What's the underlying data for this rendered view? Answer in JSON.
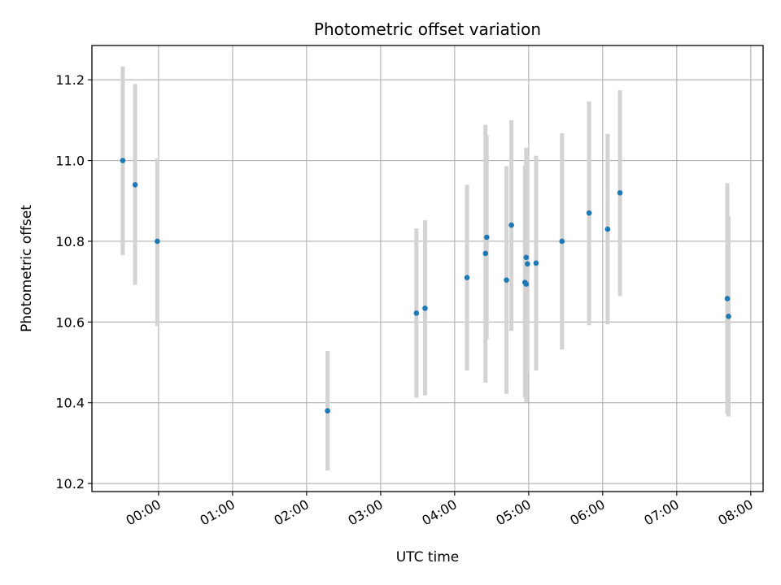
{
  "chart_data": {
    "type": "scatter",
    "title": "Photometric offset variation",
    "xlabel": "UTC time",
    "ylabel": "Photometric offset",
    "x_ticks": [
      "00:00",
      "01:00",
      "02:00",
      "03:00",
      "04:00",
      "05:00",
      "06:00",
      "07:00",
      "08:00"
    ],
    "y_ticks": [
      "10.2",
      "10.4",
      "10.6",
      "10.8",
      "11.0",
      "11.2"
    ],
    "xlim": [
      "-00:54",
      "08:10"
    ],
    "ylim": [
      10.18,
      11.285
    ],
    "grid": true,
    "errorbar_color": "#d3d3d3",
    "marker_color": "#1f77b4",
    "points": [
      {
        "x": "-00:29",
        "y": 11.0,
        "lo": 10.766,
        "hi": 11.233
      },
      {
        "x": "-00:19",
        "y": 10.94,
        "lo": 10.692,
        "hi": 11.19
      },
      {
        "x": "-00:01",
        "y": 10.8,
        "lo": 10.59,
        "hi": 11.005
      },
      {
        "x": "02:17",
        "y": 10.38,
        "lo": 10.232,
        "hi": 10.528
      },
      {
        "x": "03:29",
        "y": 10.622,
        "lo": 10.412,
        "hi": 10.832
      },
      {
        "x": "03:36",
        "y": 10.634,
        "lo": 10.418,
        "hi": 10.852
      },
      {
        "x": "04:10",
        "y": 10.71,
        "lo": 10.48,
        "hi": 10.94
      },
      {
        "x": "04:25",
        "y": 10.77,
        "lo": 10.45,
        "hi": 11.088
      },
      {
        "x": "04:26",
        "y": 10.81,
        "lo": 10.558,
        "hi": 11.062
      },
      {
        "x": "04:42",
        "y": 10.704,
        "lo": 10.422,
        "hi": 10.986
      },
      {
        "x": "04:46",
        "y": 10.84,
        "lo": 10.578,
        "hi": 11.1
      },
      {
        "x": "04:57",
        "y": 10.698,
        "lo": 10.412,
        "hi": 10.988
      },
      {
        "x": "04:58",
        "y": 10.694,
        "lo": 10.402,
        "hi": 10.986
      },
      {
        "x": "04:58",
        "y": 10.76,
        "lo": 10.488,
        "hi": 11.032
      },
      {
        "x": "04:59",
        "y": 10.744,
        "lo": 10.472,
        "hi": 11.016
      },
      {
        "x": "05:06",
        "y": 10.746,
        "lo": 10.48,
        "hi": 11.012
      },
      {
        "x": "05:27",
        "y": 10.8,
        "lo": 10.532,
        "hi": 11.068
      },
      {
        "x": "05:49",
        "y": 10.87,
        "lo": 10.592,
        "hi": 11.146
      },
      {
        "x": "06:04",
        "y": 10.83,
        "lo": 10.594,
        "hi": 11.066
      },
      {
        "x": "06:14",
        "y": 10.92,
        "lo": 10.664,
        "hi": 11.174
      },
      {
        "x": "07:41",
        "y": 10.658,
        "lo": 10.372,
        "hi": 10.944
      },
      {
        "x": "07:42",
        "y": 10.614,
        "lo": 10.366,
        "hi": 10.862
      }
    ]
  }
}
